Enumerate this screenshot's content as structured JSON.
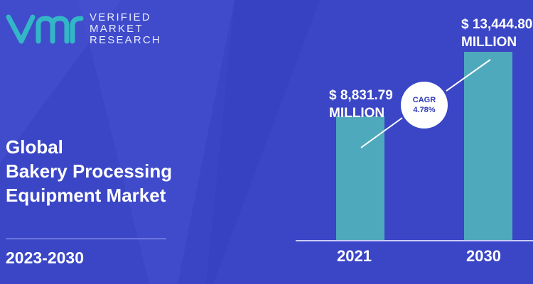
{
  "brand": {
    "line1": "VERIFIED",
    "line2": "MARKET",
    "line3": "RESEARCH"
  },
  "title": {
    "line1": "Global",
    "line2": "Bakery Processing",
    "line3": "Equipment Market"
  },
  "period": "2023-2030",
  "colors": {
    "background": "#3a46c6",
    "bar": "#4fa9bd",
    "logo": "#33b6c6",
    "text": "#ffffff"
  },
  "chart_data": {
    "type": "bar",
    "categories": [
      "2021",
      "2030"
    ],
    "values": [
      8831.79,
      13444.8
    ],
    "data_labels": [
      {
        "line1": "$ 8,831.79",
        "line2": "MILLION"
      },
      {
        "line1": "$ 13,444.80",
        "line2": "MILLION"
      }
    ],
    "cagr": {
      "label": "CAGR",
      "value": "4.78%"
    },
    "ylim": [
      0,
      13444.8
    ],
    "grid": false,
    "legend": "none"
  }
}
